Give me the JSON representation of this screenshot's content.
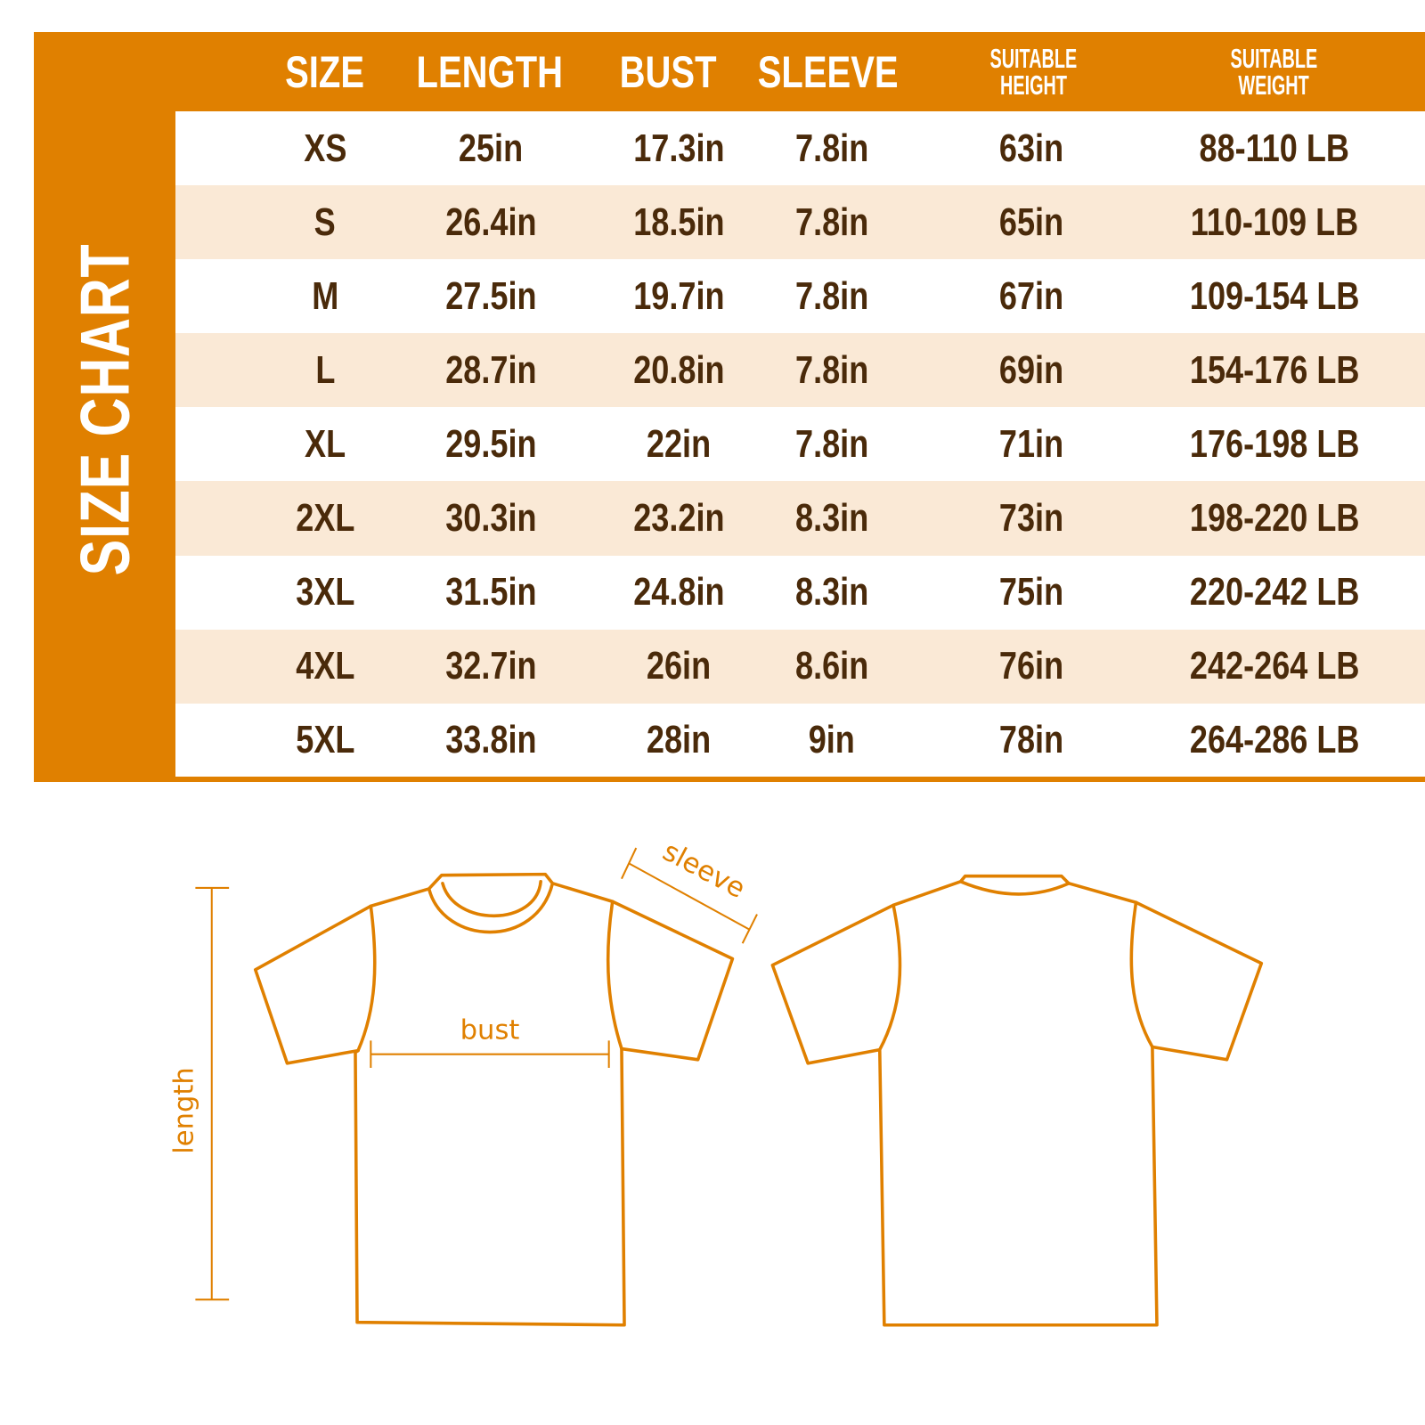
{
  "title": "SIZE CHART",
  "colors": {
    "accent": "#e08000",
    "stripe": "#fae9d6",
    "text": "#4a2a0a"
  },
  "columns": [
    "SIZE",
    "LENGTH",
    "BUST",
    "SLEEVE",
    "SUITABLE HEIGHT",
    "SUITABLE WEIGHT"
  ],
  "header_lines": {
    "height": [
      "SUITABLE",
      "HEIGHT"
    ],
    "weight": [
      "SUITABLE",
      "WEIGHT"
    ]
  },
  "rows": [
    [
      "XS",
      "25in",
      "17.3in",
      "7.8in",
      "63in",
      "88-110 LB"
    ],
    [
      "S",
      "26.4in",
      "18.5in",
      "7.8in",
      "65in",
      "110-109 LB"
    ],
    [
      "M",
      "27.5in",
      "19.7in",
      "7.8in",
      "67in",
      "109-154 LB"
    ],
    [
      "L",
      "28.7in",
      "20.8in",
      "7.8in",
      "69in",
      "154-176 LB"
    ],
    [
      "XL",
      "29.5in",
      "22in",
      "7.8in",
      "71in",
      "176-198 LB"
    ],
    [
      "2XL",
      "30.3in",
      "23.2in",
      "8.3in",
      "73in",
      "198-220 LB"
    ],
    [
      "3XL",
      "31.5in",
      "24.8in",
      "8.3in",
      "75in",
      "220-242 LB"
    ],
    [
      "4XL",
      "32.7in",
      "26in",
      "8.6in",
      "76in",
      "242-264 LB"
    ],
    [
      "5XL",
      "33.8in",
      "28in",
      "9in",
      "78in",
      "264-286 LB"
    ]
  ],
  "diagram": {
    "length": "length",
    "bust": "bust",
    "sleeve": "sleeve"
  }
}
